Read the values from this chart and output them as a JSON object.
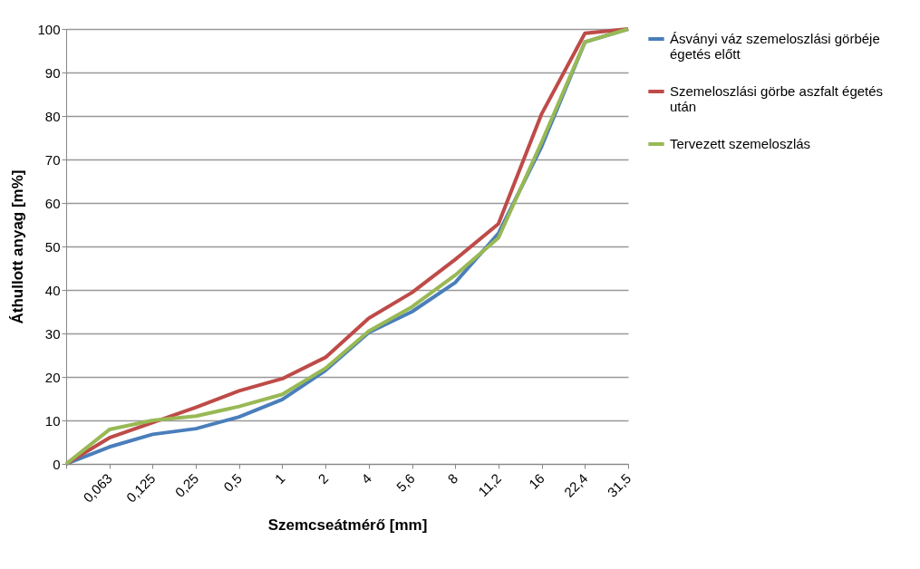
{
  "chart_data": {
    "type": "line",
    "xlabel": "Szemcseátmérő [mm]",
    "ylabel": "Áthullott anyag [m%]",
    "categories": [
      null,
      "0,063",
      "0,125",
      "0,25",
      "0,5",
      "1",
      "2",
      "4",
      "5,6",
      "8",
      "11,2",
      "16",
      "22,4",
      "31,5"
    ],
    "series": [
      {
        "name": "Ásványi váz szemeloszlási görbéje égetés előtt",
        "color": "#4a7ebb",
        "values": [
          0,
          3.9,
          6.8,
          8.1,
          10.8,
          14.8,
          21.5,
          30.2,
          35,
          41.7,
          53,
          73,
          97,
          100
        ]
      },
      {
        "name": "Szemeloszlási görbe aszfalt égetés után",
        "color": "#be4b48",
        "values": [
          0,
          6,
          9.5,
          13,
          16.8,
          19.6,
          24.5,
          33.5,
          39.4,
          47,
          55.2,
          80.5,
          99,
          100
        ]
      },
      {
        "name": "Tervezett szemeloszlás",
        "color": "#98b954",
        "values": [
          0,
          7.9,
          10,
          11,
          13.2,
          16,
          22,
          30.5,
          36.1,
          43.4,
          52,
          74,
          97,
          100
        ]
      }
    ],
    "ylim": [
      0,
      100
    ],
    "yticks": [
      0,
      10,
      20,
      30,
      40,
      50,
      60,
      70,
      80,
      90,
      100
    ],
    "grid": "y",
    "legend": "right",
    "marker": "none",
    "line_style": "solid"
  }
}
